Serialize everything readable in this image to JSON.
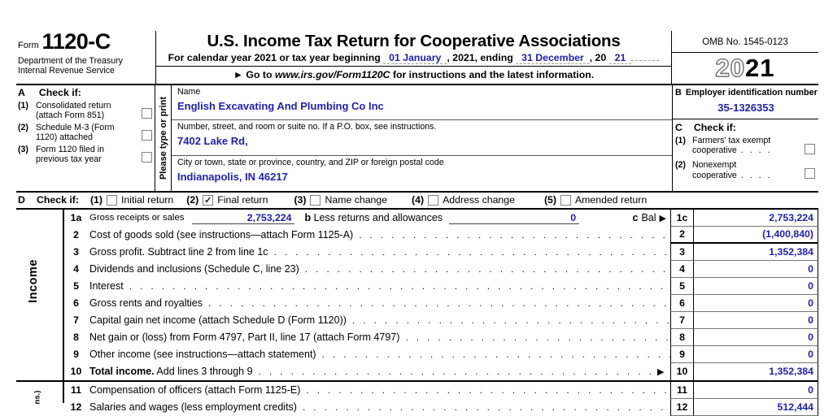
{
  "header": {
    "form_word": "Form",
    "form_number": "1120-C",
    "dept1": "Department of the Treasury",
    "dept2": "Internal Revenue Service",
    "title": "U.S. Income Tax Return for Cooperative Associations",
    "cal_prefix": "For calendar year 2021 or tax year beginning",
    "cal_begin": "01 January",
    "cal_mid": ", 2021, ending",
    "cal_end": "31 December",
    "cal_year_pre": ", 20",
    "cal_year": "21",
    "goto_arrow": "►",
    "goto_pre": "Go to",
    "goto_url": "www.irs.gov/Form1120C",
    "goto_post": "for instructions and the latest information.",
    "omb": "OMB No. 1545-0123",
    "year_outline": "20",
    "year_bold": "21"
  },
  "box_a": {
    "letter": "A",
    "title": "Check if:",
    "items": [
      {
        "num": "(1)",
        "line1": "Consolidated return",
        "line2": "(attach Form 851)",
        "checked": false
      },
      {
        "num": "(2)",
        "line1": "Schedule M-3 (Form",
        "line2": "1120) attached",
        "checked": false
      },
      {
        "num": "(3)",
        "line1": "Form 1120 filed in",
        "line2": "previous tax year",
        "checked": false
      }
    ]
  },
  "type_or_print": "Please type or print",
  "entity": {
    "name_label": "Name",
    "name_value": "English Excavating And Plumbing Co Inc",
    "street_label": "Number, street, and room or suite no. If a P.O. box, see instructions.",
    "street_value": "7402 Lake Rd,",
    "city_label": "City or town, state or province, country, and ZIP or foreign postal code",
    "city_value": "Indianapolis, IN 46217"
  },
  "box_b": {
    "letter": "B",
    "title": "Employer identification number",
    "ein": "35-1326353"
  },
  "box_c": {
    "letter": "C",
    "title": "Check if:",
    "items": [
      {
        "num": "(1)",
        "line1": "Farmers' tax exempt",
        "line2": "cooperative",
        "checked": false
      },
      {
        "num": "(2)",
        "line1": "Nonexempt",
        "line2": "cooperative",
        "checked": false
      }
    ]
  },
  "row_d": {
    "letter": "D",
    "title": "Check if:",
    "items": [
      {
        "num": "(1)",
        "label": "Initial return",
        "checked": false
      },
      {
        "num": "(2)",
        "label": "Final return",
        "checked": true
      },
      {
        "num": "(3)",
        "label": "Name change",
        "checked": false
      },
      {
        "num": "(4)",
        "label": "Address change",
        "checked": false
      },
      {
        "num": "(5)",
        "label": "Amended return",
        "checked": false
      }
    ]
  },
  "income_label": "Income",
  "deductions_label_fragment": "ns.)",
  "line_1a": {
    "num": "1a",
    "label": "Gross receipts or sales",
    "value": "2,753,224",
    "b_num": "b",
    "b_label": "Less returns and allowances",
    "b_value": "0",
    "c_num": "c",
    "c_label": "Bal",
    "arrow": "►",
    "ref": "1c",
    "amount": "2,753,224"
  },
  "income_rows": [
    {
      "num": "2",
      "desc": "Cost of goods sold (see instructions—attach Form 1125-A)",
      "ref": "2",
      "amount": "(1,400,840)",
      "style": "sub"
    },
    {
      "num": "3",
      "desc": "Gross profit. Subtract line 2 from line 1c",
      "ref": "3",
      "amount": "1,352,384"
    },
    {
      "num": "4",
      "desc": "Dividends and inclusions (Schedule C, line 23)",
      "ref": "4",
      "amount": "0"
    },
    {
      "num": "5",
      "desc": "Interest",
      "ref": "5",
      "amount": "0"
    },
    {
      "num": "6",
      "desc": "Gross rents and royalties",
      "ref": "6",
      "amount": "0"
    },
    {
      "num": "7",
      "desc": "Capital gain net income (attach Schedule D (Form 1120))",
      "ref": "7",
      "amount": "0"
    },
    {
      "num": "8",
      "desc": "Net gain or (loss) from Form 4797, Part II, line 17 (attach Form 4797)",
      "ref": "8",
      "amount": "0"
    },
    {
      "num": "9",
      "desc": "Other income (see instructions—attach statement)",
      "ref": "9",
      "amount": "0"
    },
    {
      "num": "10",
      "desc_bold": "Total income.",
      "desc": " Add lines 3 through 9",
      "ref": "10",
      "amount": "1,352,384",
      "arrow": true,
      "style": "total"
    },
    {
      "num": "11",
      "desc": "Compensation of officers (attach Form 1125-E)",
      "ref": "11",
      "amount": "0"
    },
    {
      "num": "12",
      "desc": "Salaries and wages (less employment credits)",
      "ref": "12",
      "amount": "512,444"
    }
  ],
  "colors": {
    "entry_blue": "#2121aa"
  }
}
